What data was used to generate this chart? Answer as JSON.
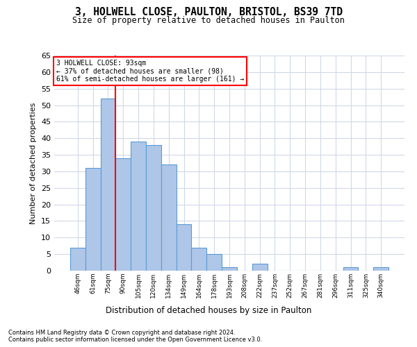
{
  "title": "3, HOLWELL CLOSE, PAULTON, BRISTOL, BS39 7TD",
  "subtitle": "Size of property relative to detached houses in Paulton",
  "xlabel": "Distribution of detached houses by size in Paulton",
  "ylabel": "Number of detached properties",
  "categories": [
    "46sqm",
    "61sqm",
    "75sqm",
    "90sqm",
    "105sqm",
    "120sqm",
    "134sqm",
    "149sqm",
    "164sqm",
    "178sqm",
    "193sqm",
    "208sqm",
    "222sqm",
    "237sqm",
    "252sqm",
    "267sqm",
    "281sqm",
    "296sqm",
    "311sqm",
    "325sqm",
    "340sqm"
  ],
  "values": [
    7,
    31,
    52,
    34,
    39,
    38,
    32,
    14,
    7,
    5,
    1,
    0,
    2,
    0,
    0,
    0,
    0,
    0,
    1,
    0,
    1
  ],
  "bar_color": "#aec6e8",
  "bar_edgecolor": "#5b9bd5",
  "background_color": "#ffffff",
  "grid_color": "#d0d8e8",
  "ylim": [
    0,
    65
  ],
  "yticks": [
    0,
    5,
    10,
    15,
    20,
    25,
    30,
    35,
    40,
    45,
    50,
    55,
    60,
    65
  ],
  "annotation_line1": "3 HOLWELL CLOSE: 93sqm",
  "annotation_line2": "← 37% of detached houses are smaller (98)",
  "annotation_line3": "61% of semi-detached houses are larger (161) →",
  "vline_position": 2.5,
  "footer_line1": "Contains HM Land Registry data © Crown copyright and database right 2024.",
  "footer_line2": "Contains public sector information licensed under the Open Government Licence v3.0."
}
